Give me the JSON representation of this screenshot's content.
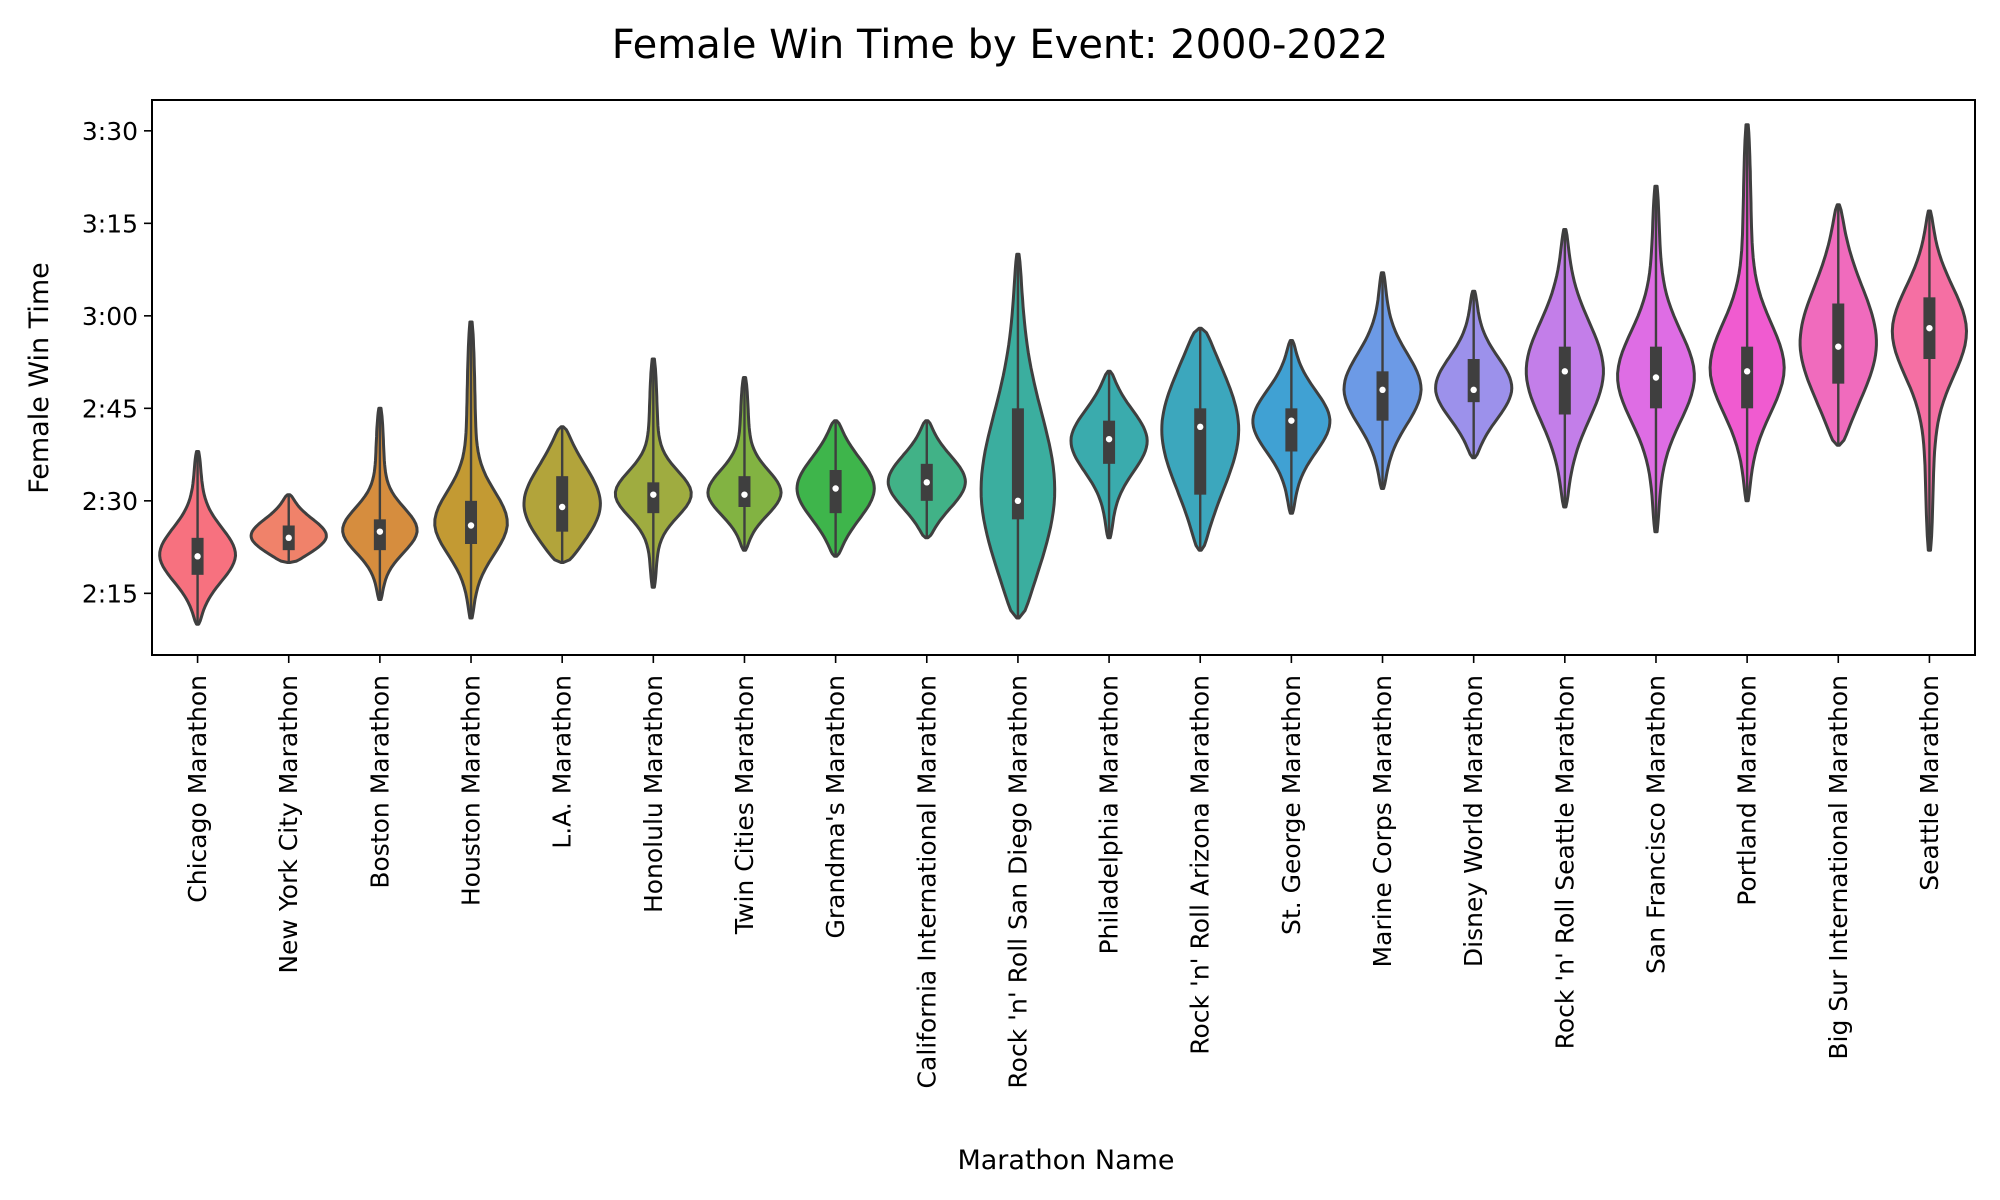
{
  "chart_data": {
    "type": "violin",
    "title": "Female Win Time by Event: 2000-2022",
    "xlabel": "Marathon Name",
    "ylabel": "Female Win Time",
    "ylim": [
      "2:05",
      "3:35"
    ],
    "yticks": [
      "2:15",
      "2:30",
      "2:45",
      "3:00",
      "3:15",
      "3:30"
    ],
    "grid": false,
    "categories": [
      "Chicago Marathon",
      "New York City Marathon",
      "Boston Marathon",
      "Houston Marathon",
      "L.A. Marathon",
      "Honolulu Marathon",
      "Twin Cities Marathon",
      "Grandma's Marathon",
      "California International Marathon",
      "Rock 'n' Roll San Diego Marathon",
      "Philadelphia Marathon",
      "Rock 'n' Roll Arizona Marathon",
      "St. George Marathon",
      "Marine Corps Marathon",
      "Disney World Marathon",
      "Rock 'n' Roll Seattle Marathon",
      "San Francisco Marathon",
      "Portland Marathon",
      "Big Sur International Marathon",
      "Seattle Marathon"
    ],
    "colors": [
      "#f7717f",
      "#f0826a",
      "#d68d3e",
      "#c39a33",
      "#b2a43b",
      "#9fac40",
      "#82b342",
      "#3eb54b",
      "#41b287",
      "#3bae9f",
      "#3aabad",
      "#3ca7bd",
      "#40a1d3",
      "#6c9ae6",
      "#9c91eb",
      "#c37ee9",
      "#de6de4",
      "#f05bd0",
      "#f06bbd",
      "#f56fa3"
    ],
    "series": [
      {
        "min": "2:10",
        "q1": "2:18",
        "median": "2:21",
        "q3": "2:24",
        "max": "2:38"
      },
      {
        "min": "2:20",
        "q1": "2:22",
        "median": "2:24",
        "q3": "2:26",
        "max": "2:31"
      },
      {
        "min": "2:14",
        "q1": "2:22",
        "median": "2:25",
        "q3": "2:27",
        "max": "2:45"
      },
      {
        "min": "2:11",
        "q1": "2:23",
        "median": "2:26",
        "q3": "2:30",
        "max": "2:59"
      },
      {
        "min": "2:20",
        "q1": "2:25",
        "median": "2:29",
        "q3": "2:34",
        "max": "2:42"
      },
      {
        "min": "2:16",
        "q1": "2:28",
        "median": "2:31",
        "q3": "2:33",
        "max": "2:53"
      },
      {
        "min": "2:22",
        "q1": "2:29",
        "median": "2:31",
        "q3": "2:34",
        "max": "2:50"
      },
      {
        "min": "2:21",
        "q1": "2:28",
        "median": "2:32",
        "q3": "2:35",
        "max": "2:43"
      },
      {
        "min": "2:24",
        "q1": "2:30",
        "median": "2:33",
        "q3": "2:36",
        "max": "2:43"
      },
      {
        "min": "2:11",
        "q1": "2:27",
        "median": "2:30",
        "q3": "2:45",
        "max": "3:10"
      },
      {
        "min": "2:24",
        "q1": "2:36",
        "median": "2:40",
        "q3": "2:43",
        "max": "2:51"
      },
      {
        "min": "2:22",
        "q1": "2:31",
        "median": "2:42",
        "q3": "2:45",
        "max": "2:58"
      },
      {
        "min": "2:28",
        "q1": "2:38",
        "median": "2:43",
        "q3": "2:45",
        "max": "2:56"
      },
      {
        "min": "2:32",
        "q1": "2:43",
        "median": "2:48",
        "q3": "2:51",
        "max": "3:07"
      },
      {
        "min": "2:37",
        "q1": "2:46",
        "median": "2:48",
        "q3": "2:53",
        "max": "3:04"
      },
      {
        "min": "2:29",
        "q1": "2:44",
        "median": "2:51",
        "q3": "2:55",
        "max": "3:14"
      },
      {
        "min": "2:25",
        "q1": "2:45",
        "median": "2:50",
        "q3": "2:55",
        "max": "3:21"
      },
      {
        "min": "2:30",
        "q1": "2:45",
        "median": "2:51",
        "q3": "2:55",
        "max": "3:31"
      },
      {
        "min": "2:39",
        "q1": "2:49",
        "median": "2:55",
        "q3": "3:02",
        "max": "3:18"
      },
      {
        "min": "2:22",
        "q1": "2:53",
        "median": "2:58",
        "q3": "3:03",
        "max": "3:17"
      }
    ]
  }
}
